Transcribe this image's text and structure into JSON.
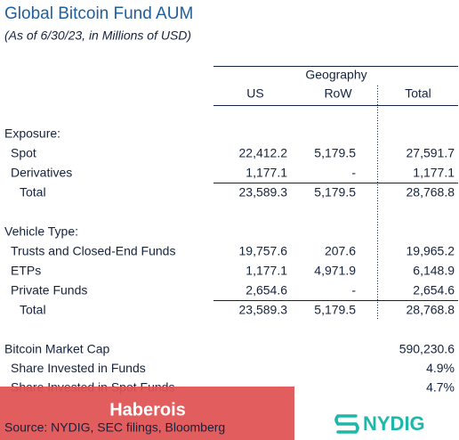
{
  "header": {
    "title": "Global Bitcoin Fund AUM",
    "subtitle": "(As of 6/30/23, in Millions of USD)"
  },
  "table": {
    "group_header": "Geography",
    "columns": [
      "US",
      "RoW",
      "Total"
    ],
    "sections": [
      {
        "heading": "Exposure:",
        "rows": [
          {
            "label": "Spot",
            "values": [
              "22,412.2",
              "5,179.5",
              "27,591.7"
            ]
          },
          {
            "label": "Derivatives",
            "values": [
              "1,177.1",
              "-",
              "1,177.1"
            ]
          }
        ],
        "total": {
          "label": "Total",
          "values": [
            "23,589.3",
            "5,179.5",
            "28,768.8"
          ]
        }
      },
      {
        "heading": "Vehicle Type:",
        "rows": [
          {
            "label": "Trusts and Closed-End Funds",
            "values": [
              "19,757.6",
              "207.6",
              "19,965.2"
            ]
          },
          {
            "label": "ETPs",
            "values": [
              "1,177.1",
              "4,971.9",
              "6,148.9"
            ]
          },
          {
            "label": "Private Funds",
            "values": [
              "2,654.6",
              "-",
              "2,654.6"
            ]
          }
        ],
        "total": {
          "label": "Total",
          "values": [
            "23,589.3",
            "5,179.5",
            "28,768.8"
          ]
        }
      }
    ]
  },
  "summary": [
    {
      "label": "Bitcoin Market Cap",
      "value": "590,230.6"
    },
    {
      "label": "Share Invested in Funds",
      "value": "4.9%"
    },
    {
      "label": "Share Invested in Spot Funds",
      "value": "4.7%"
    }
  ],
  "watermark": "Haberois",
  "source": "Source: NYDIG, SEC filings, Bloomberg",
  "logo": "NYDIG"
}
